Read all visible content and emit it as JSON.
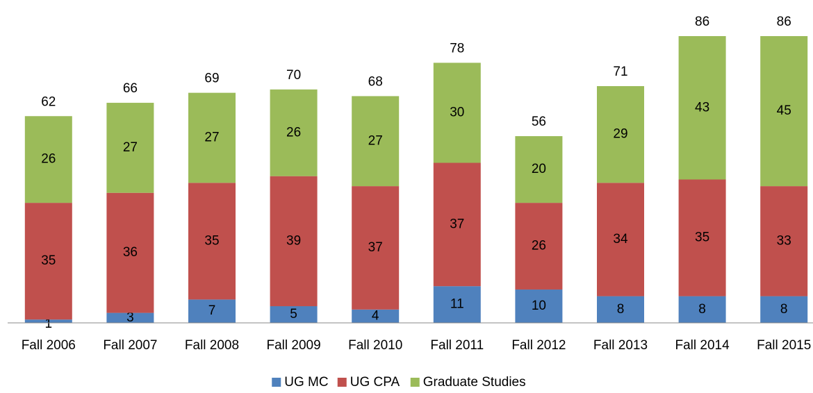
{
  "chart_data": {
    "type": "stacked_bar",
    "categories": [
      "Fall 2006",
      "Fall 2007",
      "Fall 2008",
      "Fall 2009",
      "Fall 2010",
      "Fall 2011",
      "Fall 2012",
      "Fall 2013",
      "Fall 2014",
      "Fall 2015"
    ],
    "series": [
      {
        "name": "UG MC",
        "color": "#4f81bd",
        "values": [
          1,
          3,
          7,
          5,
          4,
          11,
          10,
          8,
          8,
          8
        ]
      },
      {
        "name": "UG CPA",
        "color": "#c0504d",
        "values": [
          35,
          36,
          35,
          39,
          37,
          37,
          26,
          34,
          35,
          33
        ]
      },
      {
        "name": "Graduate Studies",
        "color": "#9bbb59",
        "values": [
          26,
          27,
          27,
          26,
          27,
          30,
          20,
          29,
          43,
          45
        ]
      }
    ],
    "totals": [
      62,
      66,
      69,
      70,
      68,
      78,
      56,
      71,
      86,
      86
    ],
    "legend": "bottom"
  }
}
